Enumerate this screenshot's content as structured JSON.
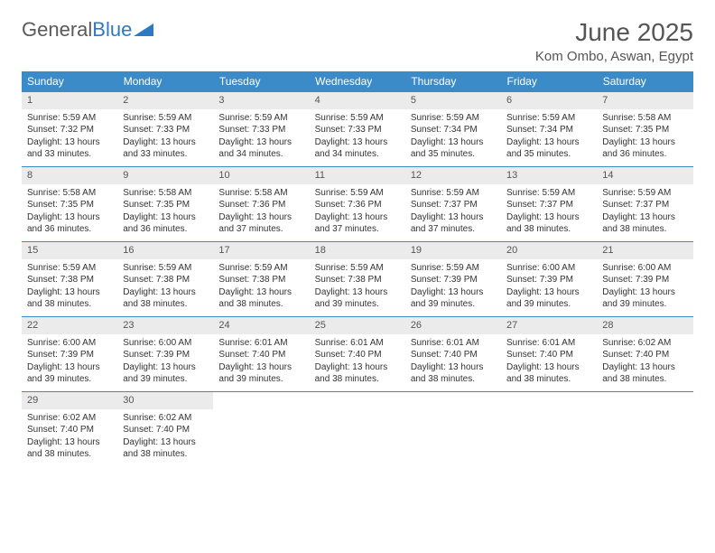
{
  "logo": {
    "text1": "General",
    "text2": "Blue"
  },
  "title": "June 2025",
  "location": "Kom Ombo, Aswan, Egypt",
  "colors": {
    "header_bg": "#3b8bc9",
    "header_text": "#ffffff",
    "daynum_bg": "#ebebeb",
    "border": "#3b8bc9",
    "body_text": "#333333",
    "title_text": "#555555"
  },
  "weekdays": [
    "Sunday",
    "Monday",
    "Tuesday",
    "Wednesday",
    "Thursday",
    "Friday",
    "Saturday"
  ],
  "weeks": [
    [
      {
        "n": "1",
        "sr": "Sunrise: 5:59 AM",
        "ss": "Sunset: 7:32 PM",
        "d1": "Daylight: 13 hours",
        "d2": "and 33 minutes."
      },
      {
        "n": "2",
        "sr": "Sunrise: 5:59 AM",
        "ss": "Sunset: 7:33 PM",
        "d1": "Daylight: 13 hours",
        "d2": "and 33 minutes."
      },
      {
        "n": "3",
        "sr": "Sunrise: 5:59 AM",
        "ss": "Sunset: 7:33 PM",
        "d1": "Daylight: 13 hours",
        "d2": "and 34 minutes."
      },
      {
        "n": "4",
        "sr": "Sunrise: 5:59 AM",
        "ss": "Sunset: 7:33 PM",
        "d1": "Daylight: 13 hours",
        "d2": "and 34 minutes."
      },
      {
        "n": "5",
        "sr": "Sunrise: 5:59 AM",
        "ss": "Sunset: 7:34 PM",
        "d1": "Daylight: 13 hours",
        "d2": "and 35 minutes."
      },
      {
        "n": "6",
        "sr": "Sunrise: 5:59 AM",
        "ss": "Sunset: 7:34 PM",
        "d1": "Daylight: 13 hours",
        "d2": "and 35 minutes."
      },
      {
        "n": "7",
        "sr": "Sunrise: 5:58 AM",
        "ss": "Sunset: 7:35 PM",
        "d1": "Daylight: 13 hours",
        "d2": "and 36 minutes."
      }
    ],
    [
      {
        "n": "8",
        "sr": "Sunrise: 5:58 AM",
        "ss": "Sunset: 7:35 PM",
        "d1": "Daylight: 13 hours",
        "d2": "and 36 minutes."
      },
      {
        "n": "9",
        "sr": "Sunrise: 5:58 AM",
        "ss": "Sunset: 7:35 PM",
        "d1": "Daylight: 13 hours",
        "d2": "and 36 minutes."
      },
      {
        "n": "10",
        "sr": "Sunrise: 5:58 AM",
        "ss": "Sunset: 7:36 PM",
        "d1": "Daylight: 13 hours",
        "d2": "and 37 minutes."
      },
      {
        "n": "11",
        "sr": "Sunrise: 5:59 AM",
        "ss": "Sunset: 7:36 PM",
        "d1": "Daylight: 13 hours",
        "d2": "and 37 minutes."
      },
      {
        "n": "12",
        "sr": "Sunrise: 5:59 AM",
        "ss": "Sunset: 7:37 PM",
        "d1": "Daylight: 13 hours",
        "d2": "and 37 minutes."
      },
      {
        "n": "13",
        "sr": "Sunrise: 5:59 AM",
        "ss": "Sunset: 7:37 PM",
        "d1": "Daylight: 13 hours",
        "d2": "and 38 minutes."
      },
      {
        "n": "14",
        "sr": "Sunrise: 5:59 AM",
        "ss": "Sunset: 7:37 PM",
        "d1": "Daylight: 13 hours",
        "d2": "and 38 minutes."
      }
    ],
    [
      {
        "n": "15",
        "sr": "Sunrise: 5:59 AM",
        "ss": "Sunset: 7:38 PM",
        "d1": "Daylight: 13 hours",
        "d2": "and 38 minutes."
      },
      {
        "n": "16",
        "sr": "Sunrise: 5:59 AM",
        "ss": "Sunset: 7:38 PM",
        "d1": "Daylight: 13 hours",
        "d2": "and 38 minutes."
      },
      {
        "n": "17",
        "sr": "Sunrise: 5:59 AM",
        "ss": "Sunset: 7:38 PM",
        "d1": "Daylight: 13 hours",
        "d2": "and 38 minutes."
      },
      {
        "n": "18",
        "sr": "Sunrise: 5:59 AM",
        "ss": "Sunset: 7:38 PM",
        "d1": "Daylight: 13 hours",
        "d2": "and 39 minutes."
      },
      {
        "n": "19",
        "sr": "Sunrise: 5:59 AM",
        "ss": "Sunset: 7:39 PM",
        "d1": "Daylight: 13 hours",
        "d2": "and 39 minutes."
      },
      {
        "n": "20",
        "sr": "Sunrise: 6:00 AM",
        "ss": "Sunset: 7:39 PM",
        "d1": "Daylight: 13 hours",
        "d2": "and 39 minutes."
      },
      {
        "n": "21",
        "sr": "Sunrise: 6:00 AM",
        "ss": "Sunset: 7:39 PM",
        "d1": "Daylight: 13 hours",
        "d2": "and 39 minutes."
      }
    ],
    [
      {
        "n": "22",
        "sr": "Sunrise: 6:00 AM",
        "ss": "Sunset: 7:39 PM",
        "d1": "Daylight: 13 hours",
        "d2": "and 39 minutes."
      },
      {
        "n": "23",
        "sr": "Sunrise: 6:00 AM",
        "ss": "Sunset: 7:39 PM",
        "d1": "Daylight: 13 hours",
        "d2": "and 39 minutes."
      },
      {
        "n": "24",
        "sr": "Sunrise: 6:01 AM",
        "ss": "Sunset: 7:40 PM",
        "d1": "Daylight: 13 hours",
        "d2": "and 39 minutes."
      },
      {
        "n": "25",
        "sr": "Sunrise: 6:01 AM",
        "ss": "Sunset: 7:40 PM",
        "d1": "Daylight: 13 hours",
        "d2": "and 38 minutes."
      },
      {
        "n": "26",
        "sr": "Sunrise: 6:01 AM",
        "ss": "Sunset: 7:40 PM",
        "d1": "Daylight: 13 hours",
        "d2": "and 38 minutes."
      },
      {
        "n": "27",
        "sr": "Sunrise: 6:01 AM",
        "ss": "Sunset: 7:40 PM",
        "d1": "Daylight: 13 hours",
        "d2": "and 38 minutes."
      },
      {
        "n": "28",
        "sr": "Sunrise: 6:02 AM",
        "ss": "Sunset: 7:40 PM",
        "d1": "Daylight: 13 hours",
        "d2": "and 38 minutes."
      }
    ],
    [
      {
        "n": "29",
        "sr": "Sunrise: 6:02 AM",
        "ss": "Sunset: 7:40 PM",
        "d1": "Daylight: 13 hours",
        "d2": "and 38 minutes."
      },
      {
        "n": "30",
        "sr": "Sunrise: 6:02 AM",
        "ss": "Sunset: 7:40 PM",
        "d1": "Daylight: 13 hours",
        "d2": "and 38 minutes."
      },
      null,
      null,
      null,
      null,
      null
    ]
  ]
}
